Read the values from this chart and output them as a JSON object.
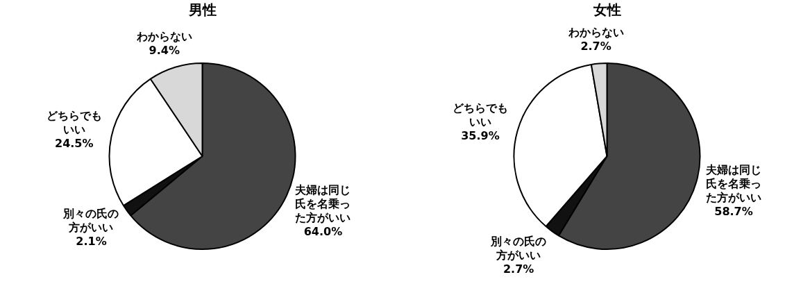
{
  "chart_data": [
    {
      "type": "pie",
      "title": "男性",
      "categories": [
        "夫婦は同じ氏を名乗った方がいい",
        "別々の氏の方がいい",
        "どちらでもいい",
        "わからない"
      ],
      "values": [
        64.0,
        2.1,
        24.5,
        9.4
      ],
      "value_labels": [
        "64.0%",
        "2.1%",
        "24.5%",
        "9.4%"
      ],
      "colors": [
        "#444444",
        "#111111",
        "#ffffff",
        "#d8d8d8"
      ],
      "legend": false
    },
    {
      "type": "pie",
      "title": "女性",
      "categories": [
        "夫婦は同じ氏を名乗った方がいい",
        "別々の氏の方がいい",
        "どちらでもいい",
        "わからない"
      ],
      "values": [
        58.7,
        2.7,
        35.9,
        2.7
      ],
      "value_labels": [
        "58.7%",
        "2.7%",
        "35.9%",
        "2.7%"
      ],
      "colors": [
        "#444444",
        "#111111",
        "#ffffff",
        "#d8d8d8"
      ],
      "legend": false
    }
  ]
}
